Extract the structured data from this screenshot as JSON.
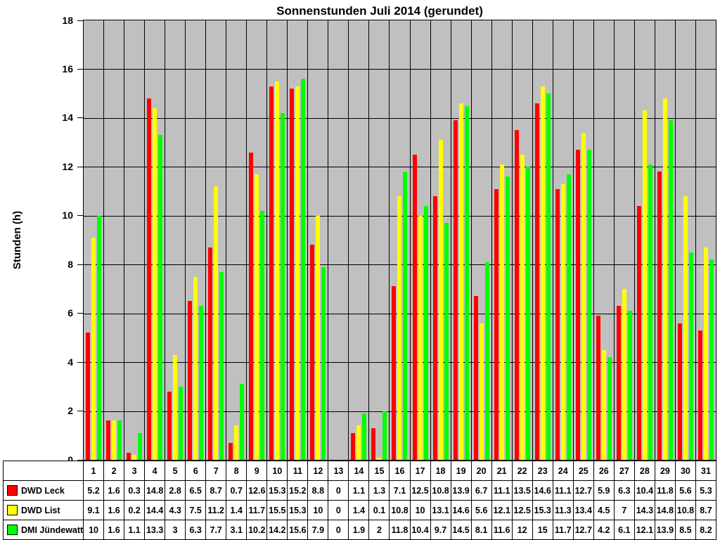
{
  "title": "Sonnenstunden Juli 2014 (gerundet)",
  "y_axis": {
    "label": "Stunden (h)",
    "tick_labels": [
      "18",
      "16",
      "14",
      "12",
      "10",
      "8",
      "6",
      "4",
      "2",
      "0"
    ]
  },
  "colors": {
    "plot_background": "#c0c0c0",
    "gridline": "#000000",
    "series_red": "#ff0000",
    "series_yellow": "#ffff00",
    "series_green": "#00ff00"
  },
  "chart_data": {
    "type": "bar",
    "title": "Sonnenstunden Juli 2014 (gerundet)",
    "xlabel": "",
    "ylabel": "Stunden (h)",
    "ylim": [
      0,
      18
    ],
    "y_tick_step": 2,
    "grid": true,
    "legend_position": "data-table-left-column",
    "categories": [
      "1",
      "2",
      "3",
      "4",
      "5",
      "6",
      "7",
      "8",
      "9",
      "10",
      "11",
      "12",
      "13",
      "14",
      "15",
      "16",
      "17",
      "18",
      "19",
      "20",
      "21",
      "22",
      "23",
      "24",
      "25",
      "26",
      "27",
      "28",
      "29",
      "30",
      "31"
    ],
    "series": [
      {
        "name": "DWD Leck",
        "color": "#ff0000",
        "values": [
          5.2,
          1.6,
          0.3,
          14.8,
          2.8,
          6.5,
          8.7,
          0.7,
          12.6,
          15.3,
          15.2,
          8.8,
          0,
          1.1,
          1.3,
          7.1,
          12.5,
          10.8,
          13.9,
          6.7,
          11.1,
          13.5,
          14.6,
          11.1,
          12.7,
          5.9,
          6.3,
          10.4,
          11.8,
          5.6,
          5.3
        ]
      },
      {
        "name": "DWD List",
        "color": "#ffff00",
        "values": [
          9.1,
          1.6,
          0.2,
          14.4,
          4.3,
          7.5,
          11.2,
          1.4,
          11.7,
          15.5,
          15.3,
          10,
          0,
          1.4,
          0.1,
          10.8,
          10,
          13.1,
          14.6,
          5.6,
          12.1,
          12.5,
          15.3,
          11.3,
          13.4,
          4.5,
          7,
          14.3,
          14.8,
          10.8,
          8.7
        ]
      },
      {
        "name": "DMI Jündewatt",
        "color": "#00ff00",
        "values": [
          10,
          1.6,
          1.1,
          13.3,
          3,
          6.3,
          7.7,
          3.1,
          10.2,
          14.2,
          15.6,
          7.9,
          0,
          1.9,
          2,
          11.8,
          10.4,
          9.7,
          14.5,
          8.1,
          11.6,
          12,
          15,
          11.7,
          12.7,
          4.2,
          6.1,
          12.1,
          13.9,
          8.5,
          8.2
        ]
      }
    ]
  }
}
